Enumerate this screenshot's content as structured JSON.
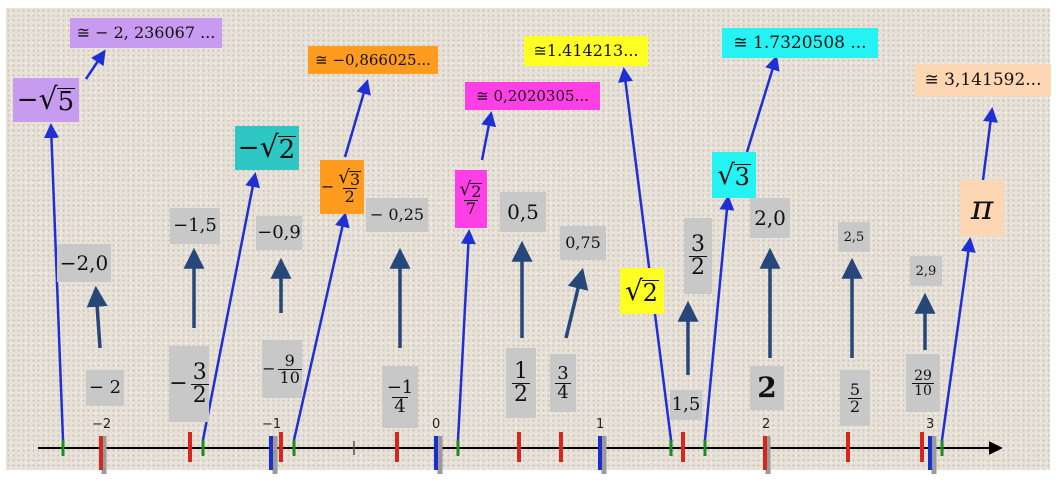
{
  "axis_labels": [
    "−2",
    "−1",
    "0",
    "1",
    "2",
    "3"
  ],
  "approximations": {
    "neg_sqrt5": "≅ − 2, 236067 ...",
    "neg_half_sqrt3": "≅ −0,866025...",
    "sqrt2_over_7": "≅ 0,2020305...",
    "sqrt2": "≅1.414213...",
    "sqrt3": "≅ 1.7320508 ...",
    "pi": "≅ 3,141592..."
  },
  "expressions": {
    "neg_sqrt5": {
      "sign": "−",
      "radicand": "5"
    },
    "neg_sqrt2": {
      "sign": "−",
      "radicand": "2"
    },
    "neg_half_sqrt3": {
      "sign": "−",
      "radicand": "3",
      "den": "2"
    },
    "sqrt2_over_7": {
      "radicand": "2",
      "den": "7"
    },
    "sqrt2": {
      "radicand": "2"
    },
    "sqrt3": {
      "radicand": "3"
    },
    "pi": "π"
  },
  "decimals": {
    "d_neg2": "−2,0",
    "d_neg1_5": "−1,5",
    "d_neg0_9": "−0,9",
    "d_neg0_25": "− 0,25",
    "d_0_5": "0,5",
    "d_0_75": "0,75",
    "d_2": "2,0",
    "d_2_5": "2,5",
    "d_2_9": "2,9"
  },
  "fractions": {
    "f_neg2": "− 2",
    "f_neg3_2": {
      "sign": "−",
      "num": "3",
      "den": "2"
    },
    "f_neg9_10": {
      "sign": "−",
      "num": "9",
      "den": "10"
    },
    "f_neg1_4": {
      "num": "−1",
      "den": "4"
    },
    "f_1_2": {
      "num": "1",
      "den": "2"
    },
    "f_3_4": {
      "num": "3",
      "den": "4"
    },
    "f_3_2": {
      "num": "3",
      "den": "2"
    },
    "f_1_5": "1,5",
    "f_2": "2",
    "f_5_2": {
      "num": "5",
      "den": "2"
    },
    "f_29_10": {
      "num": "29",
      "den": "10"
    }
  },
  "colors": {
    "axis": "#000000",
    "arrow_navy": "#27467a",
    "arrow_blue": "#1e2fd6",
    "tick_red": "#d8261f",
    "tick_green": "#1f8a1f",
    "tick_blue": "#1a2fd0",
    "tick_gray": "#9a9a9a"
  }
}
